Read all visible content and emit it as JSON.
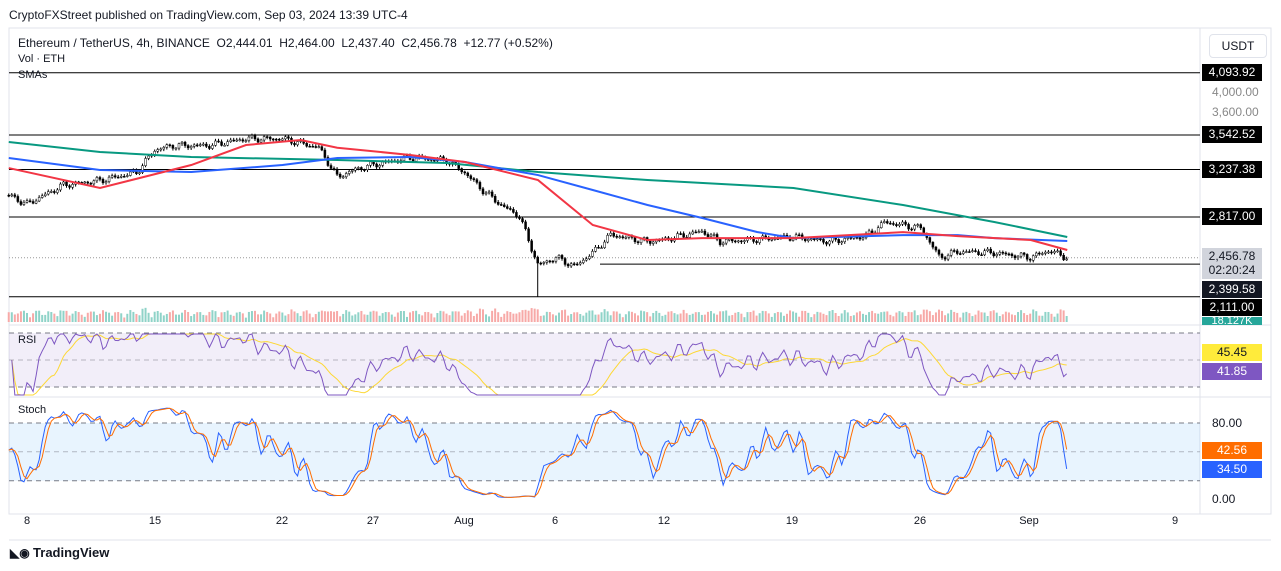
{
  "header": {
    "published": "CryptoFXStreet published on TradingView.com, Sep 03, 2024 13:39 UTC-4"
  },
  "legend": {
    "symbol": "Ethereum / TetherUS, 4h, BINANCE",
    "open": "O2,444.01",
    "high": "H2,464.00",
    "low": "L2,437.40",
    "close": "C2,456.78",
    "change": "+12.77 (+0.52%)",
    "volume": "Vol · ETH",
    "smas": "SMAs"
  },
  "currency": "USDT",
  "price_axis": {
    "levels": [
      "4,093.92",
      "3,542.52",
      "3,237.38",
      "2,817.00",
      "2,399.58",
      "2,111.00"
    ],
    "last_price": "2,456.78",
    "countdown": "02:20:24",
    "volume_label": "18.127K",
    "ticks": [
      "4,000.00",
      "3,600.00"
    ]
  },
  "rsi": {
    "title": "RSI",
    "ma_value": "45.45",
    "value": "41.85"
  },
  "stoch": {
    "title": "Stoch",
    "upper": "80.00",
    "lower": "0.00",
    "d_value": "42.56",
    "k_value": "34.50"
  },
  "x_axis": {
    "ticks": [
      "8",
      "15",
      "22",
      "27",
      "Aug",
      "6",
      "12",
      "19",
      "26",
      "Sep",
      "9"
    ]
  },
  "footer": {
    "brand": "TradingView"
  },
  "colors": {
    "sma50": "#f23645",
    "sma100": "#2962ff",
    "sma200": "#089981",
    "rsi": "#7e57c2",
    "rsi_ma": "#fdd835",
    "stoch_k": "#2962ff",
    "stoch_d": "#ff6d00",
    "up": "#089981",
    "down": "#f23645"
  },
  "chart_data": {
    "type": "candlestick",
    "timeframe": "4h",
    "ylim": [
      2050,
      4150
    ],
    "horizontal_levels": [
      4093.92,
      3542.52,
      3237.38,
      2817.0,
      2399.58,
      2111.0
    ],
    "close_path": [
      [
        "2024-07-07",
        3010
      ],
      [
        "2024-07-08",
        2930
      ],
      [
        "2024-07-10",
        3100
      ],
      [
        "2024-07-12",
        3140
      ],
      [
        "2024-07-14",
        3210
      ],
      [
        "2024-07-15",
        3410
      ],
      [
        "2024-07-16",
        3450
      ],
      [
        "2024-07-18",
        3450
      ],
      [
        "2024-07-20",
        3510
      ],
      [
        "2024-07-22",
        3510
      ],
      [
        "2024-07-24",
        3430
      ],
      [
        "2024-07-25",
        3170
      ],
      [
        "2024-07-26",
        3240
      ],
      [
        "2024-07-27",
        3280
      ],
      [
        "2024-07-29",
        3340
      ],
      [
        "2024-07-31",
        3320
      ],
      [
        "2024-08-01",
        3210
      ],
      [
        "2024-08-02",
        3050
      ],
      [
        "2024-08-03",
        2920
      ],
      [
        "2024-08-04",
        2820
      ],
      [
        "2024-08-05",
        2390
      ],
      [
        "2024-08-06",
        2460
      ],
      [
        "2024-08-07",
        2380
      ],
      [
        "2024-08-08",
        2500
      ],
      [
        "2024-08-09",
        2660
      ],
      [
        "2024-08-11",
        2600
      ],
      [
        "2024-08-12",
        2620
      ],
      [
        "2024-08-14",
        2690
      ],
      [
        "2024-08-15",
        2600
      ],
      [
        "2024-08-17",
        2620
      ],
      [
        "2024-08-19",
        2640
      ],
      [
        "2024-08-21",
        2600
      ],
      [
        "2024-08-23",
        2650
      ],
      [
        "2024-08-24",
        2770
      ],
      [
        "2024-08-26",
        2720
      ],
      [
        "2024-08-27",
        2460
      ],
      [
        "2024-08-28",
        2510
      ],
      [
        "2024-08-30",
        2500
      ],
      [
        "2024-09-01",
        2460
      ],
      [
        "2024-09-02",
        2520
      ],
      [
        "2024-09-03",
        2457
      ]
    ],
    "sma50": [
      [
        "2024-07-07",
        3250
      ],
      [
        "2024-07-12",
        3074
      ],
      [
        "2024-07-17",
        3277
      ],
      [
        "2024-07-20",
        3454
      ],
      [
        "2024-07-23",
        3498
      ],
      [
        "2024-07-25",
        3430
      ],
      [
        "2024-07-29",
        3366
      ],
      [
        "2024-08-01",
        3304
      ],
      [
        "2024-08-05",
        3144
      ],
      [
        "2024-08-08",
        2746
      ],
      [
        "2024-08-11",
        2613
      ],
      [
        "2024-08-14",
        2630
      ],
      [
        "2024-08-19",
        2630
      ],
      [
        "2024-08-25",
        2683
      ],
      [
        "2024-08-28",
        2648
      ],
      [
        "2024-09-01",
        2613
      ],
      [
        "2024-09-03",
        2525
      ]
    ],
    "sma100": [
      [
        "2024-07-07",
        3339
      ],
      [
        "2024-07-12",
        3233
      ],
      [
        "2024-07-17",
        3215
      ],
      [
        "2024-07-22",
        3277
      ],
      [
        "2024-07-25",
        3339
      ],
      [
        "2024-07-29",
        3348
      ],
      [
        "2024-08-01",
        3304
      ],
      [
        "2024-08-05",
        3188
      ],
      [
        "2024-08-08",
        3056
      ],
      [
        "2024-08-11",
        2923
      ],
      [
        "2024-08-14",
        2808
      ],
      [
        "2024-08-17",
        2684
      ],
      [
        "2024-08-19",
        2630
      ],
      [
        "2024-08-25",
        2657
      ],
      [
        "2024-08-28",
        2657
      ],
      [
        "2024-08-30",
        2630
      ],
      [
        "2024-09-03",
        2605
      ]
    ],
    "sma200": [
      [
        "2024-07-07",
        3481
      ],
      [
        "2024-07-12",
        3392
      ],
      [
        "2024-07-17",
        3348
      ],
      [
        "2024-07-25",
        3321
      ],
      [
        "2024-07-31",
        3295
      ],
      [
        "2024-08-05",
        3215
      ],
      [
        "2024-08-11",
        3144
      ],
      [
        "2024-08-19",
        3074
      ],
      [
        "2024-08-25",
        2923
      ],
      [
        "2024-08-30",
        2773
      ],
      [
        "2024-09-03",
        2640
      ]
    ],
    "rsi_levels": [
      70,
      50,
      30
    ],
    "stoch_levels": [
      80,
      50,
      20
    ],
    "rsi_last": 41.85,
    "rsi_ma_last": 45.45,
    "stoch_k_last": 34.5,
    "stoch_d_last": 42.56
  }
}
